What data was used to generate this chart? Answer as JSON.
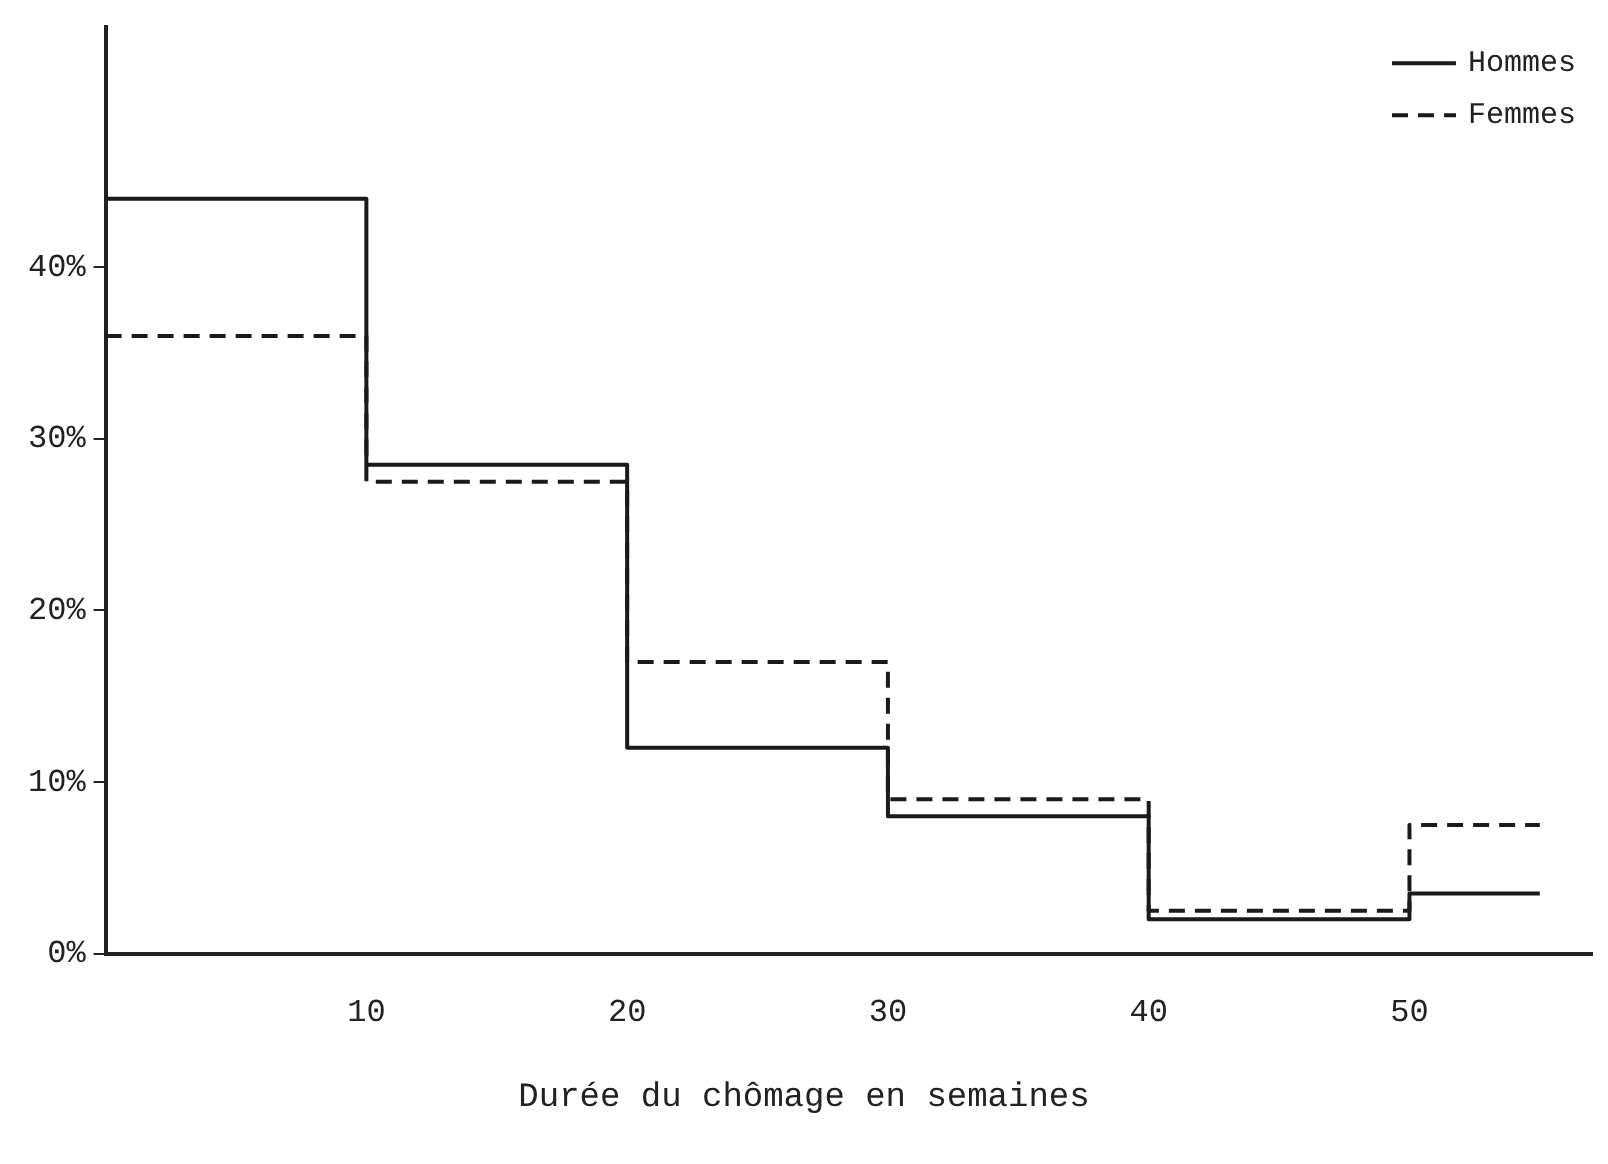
{
  "chart_data": {
    "type": "step",
    "xlabel": "Durée du chômage en semaines",
    "x": [
      0,
      10,
      20,
      30,
      40,
      50,
      55
    ],
    "series": [
      {
        "name": "Hommes",
        "color": "#1a1a1a",
        "line_style": "solid",
        "values": [
          44,
          28.5,
          12,
          8,
          2,
          3.5,
          3.5
        ]
      },
      {
        "name": "Femmes",
        "color": "#1a1a1a",
        "line_style": "dashed",
        "values": [
          36,
          27.5,
          17,
          9,
          2.5,
          7.5,
          7.5
        ]
      }
    ],
    "xlim": [
      0,
      57
    ],
    "xticks": [
      10,
      20,
      30,
      40,
      50
    ],
    "ylim": [
      0,
      54
    ],
    "yticks": [
      {
        "value": 0,
        "label": "0%"
      },
      {
        "value": 10,
        "label": "10%"
      },
      {
        "value": 20,
        "label": "20%"
      },
      {
        "value": 30,
        "label": "30%"
      },
      {
        "value": 40,
        "label": "40%"
      }
    ],
    "grid": false,
    "legend": "top right"
  }
}
